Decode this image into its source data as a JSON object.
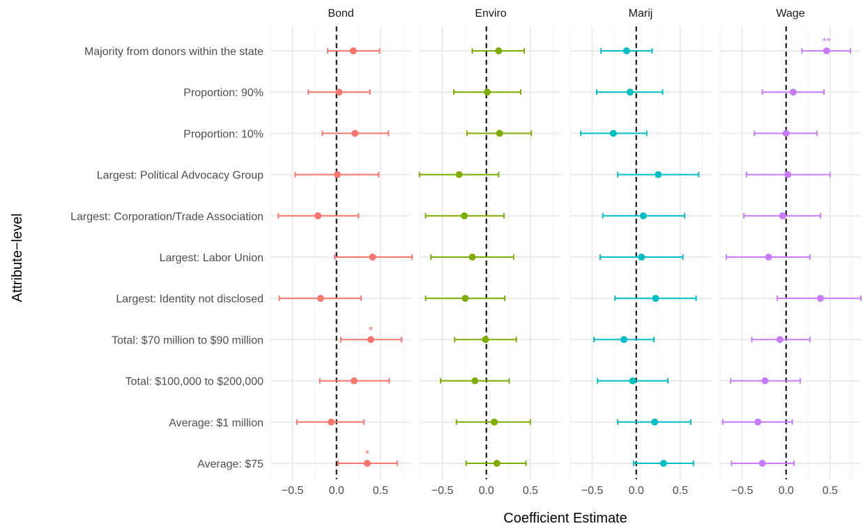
{
  "chart_data": {
    "type": "scatter",
    "subtype": "coefficient-plot-with-confidence-intervals",
    "facet_by": "outcome",
    "panels": [
      "Bond",
      "Enviro",
      "Marij",
      "Wage"
    ],
    "panel_colors": {
      "Bond": "#F8766D",
      "Enviro": "#7CAE00",
      "Marij": "#00BFC4",
      "Wage": "#C77CFF"
    },
    "categories": [
      "Majority from donors within the state",
      "Proportion: 90%",
      "Proportion: 10%",
      "Largest: Political Advocacy Group",
      "Largest: Corporation/Trade Association",
      "Largest: Labor Union",
      "Largest: Identity not disclosed",
      "Total: $70 million to $90 million",
      "Total: $100,000 to $200,000",
      "Average: $1 million",
      "Average: $75"
    ],
    "xlim": [
      -0.75,
      0.85
    ],
    "x_ticks": [
      -0.5,
      0.0,
      0.5
    ],
    "x_tick_labels": [
      "−0.5",
      "0.0",
      "0.5"
    ],
    "reference_line_x": 0,
    "xlabel": "Coefficient Estimate",
    "ylabel": "Attribute−level",
    "grid": true,
    "series": [
      {
        "name": "Bond",
        "estimates": [
          0.19,
          0.03,
          0.21,
          0.01,
          -0.21,
          0.41,
          -0.18,
          0.39,
          0.2,
          -0.06,
          0.35
        ],
        "lower": [
          -0.1,
          -0.32,
          -0.16,
          -0.47,
          -0.66,
          -0.02,
          -0.65,
          0.05,
          -0.19,
          -0.45,
          0.02
        ],
        "upper": [
          0.49,
          0.38,
          0.59,
          0.48,
          0.25,
          0.86,
          0.28,
          0.74,
          0.6,
          0.31,
          0.69
        ],
        "significance": [
          "",
          "",
          "",
          "",
          "",
          "",
          "",
          "*",
          "",
          "",
          "*"
        ]
      },
      {
        "name": "Enviro",
        "estimates": [
          0.14,
          0.01,
          0.15,
          -0.31,
          -0.25,
          -0.16,
          -0.24,
          -0.01,
          -0.13,
          0.09,
          0.12
        ],
        "lower": [
          -0.16,
          -0.37,
          -0.22,
          -0.76,
          -0.69,
          -0.63,
          -0.69,
          -0.36,
          -0.52,
          -0.34,
          -0.23
        ],
        "upper": [
          0.43,
          0.39,
          0.51,
          0.14,
          0.2,
          0.31,
          0.21,
          0.34,
          0.26,
          0.5,
          0.45
        ],
        "significance": [
          "",
          "",
          "",
          "",
          "",
          "",
          "",
          "",
          "",
          "",
          ""
        ]
      },
      {
        "name": "Marij",
        "estimates": [
          -0.11,
          -0.07,
          -0.26,
          0.25,
          0.08,
          0.06,
          0.22,
          -0.14,
          -0.04,
          0.21,
          0.31
        ],
        "lower": [
          -0.4,
          -0.45,
          -0.63,
          -0.21,
          -0.38,
          -0.41,
          -0.24,
          -0.48,
          -0.44,
          -0.21,
          -0.03
        ],
        "upper": [
          0.18,
          0.3,
          0.12,
          0.71,
          0.55,
          0.53,
          0.68,
          0.2,
          0.36,
          0.62,
          0.65
        ],
        "significance": [
          "",
          "",
          "",
          "",
          "",
          "",
          "",
          "",
          "",
          "",
          ""
        ]
      },
      {
        "name": "Wage",
        "estimates": [
          0.46,
          0.08,
          0.0,
          0.02,
          -0.04,
          -0.2,
          0.39,
          -0.07,
          -0.24,
          -0.32,
          -0.27
        ],
        "lower": [
          0.18,
          -0.27,
          -0.36,
          -0.45,
          -0.48,
          -0.68,
          -0.1,
          -0.39,
          -0.63,
          -0.72,
          -0.62
        ],
        "upper": [
          0.73,
          0.43,
          0.35,
          0.5,
          0.39,
          0.27,
          0.85,
          0.27,
          0.16,
          0.07,
          0.09
        ],
        "significance": [
          "**",
          "",
          "",
          "",
          "",
          "",
          "",
          "",
          "",
          "",
          ""
        ]
      }
    ]
  }
}
